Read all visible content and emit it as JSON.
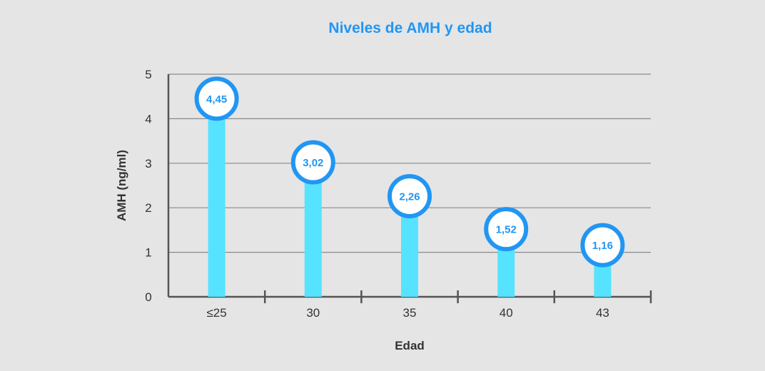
{
  "chart_data": {
    "type": "bar",
    "title": "Niveles de AMH y edad",
    "xlabel": "Edad",
    "ylabel": "AMH (ng/ml)",
    "categories": [
      "≤25",
      "30",
      "35",
      "40",
      "43"
    ],
    "values": [
      4.45,
      3.02,
      2.26,
      1.52,
      1.16
    ],
    "value_labels": [
      "4,45",
      "3,02",
      "2,26",
      "1,52",
      "1,16"
    ],
    "yticks": [
      "0",
      "1",
      "2",
      "3",
      "4",
      "5"
    ],
    "ylim": [
      0,
      5
    ],
    "grid": true,
    "legend": "none",
    "colors": {
      "title": "#2196f3",
      "bar": "#55e3ff",
      "marker_ring": "#2196f3",
      "marker_fill": "#ffffff",
      "label_text": "#2196f3",
      "grid": "#8a8a8a",
      "axis": "#555555",
      "background": "#e5e5e5"
    }
  }
}
